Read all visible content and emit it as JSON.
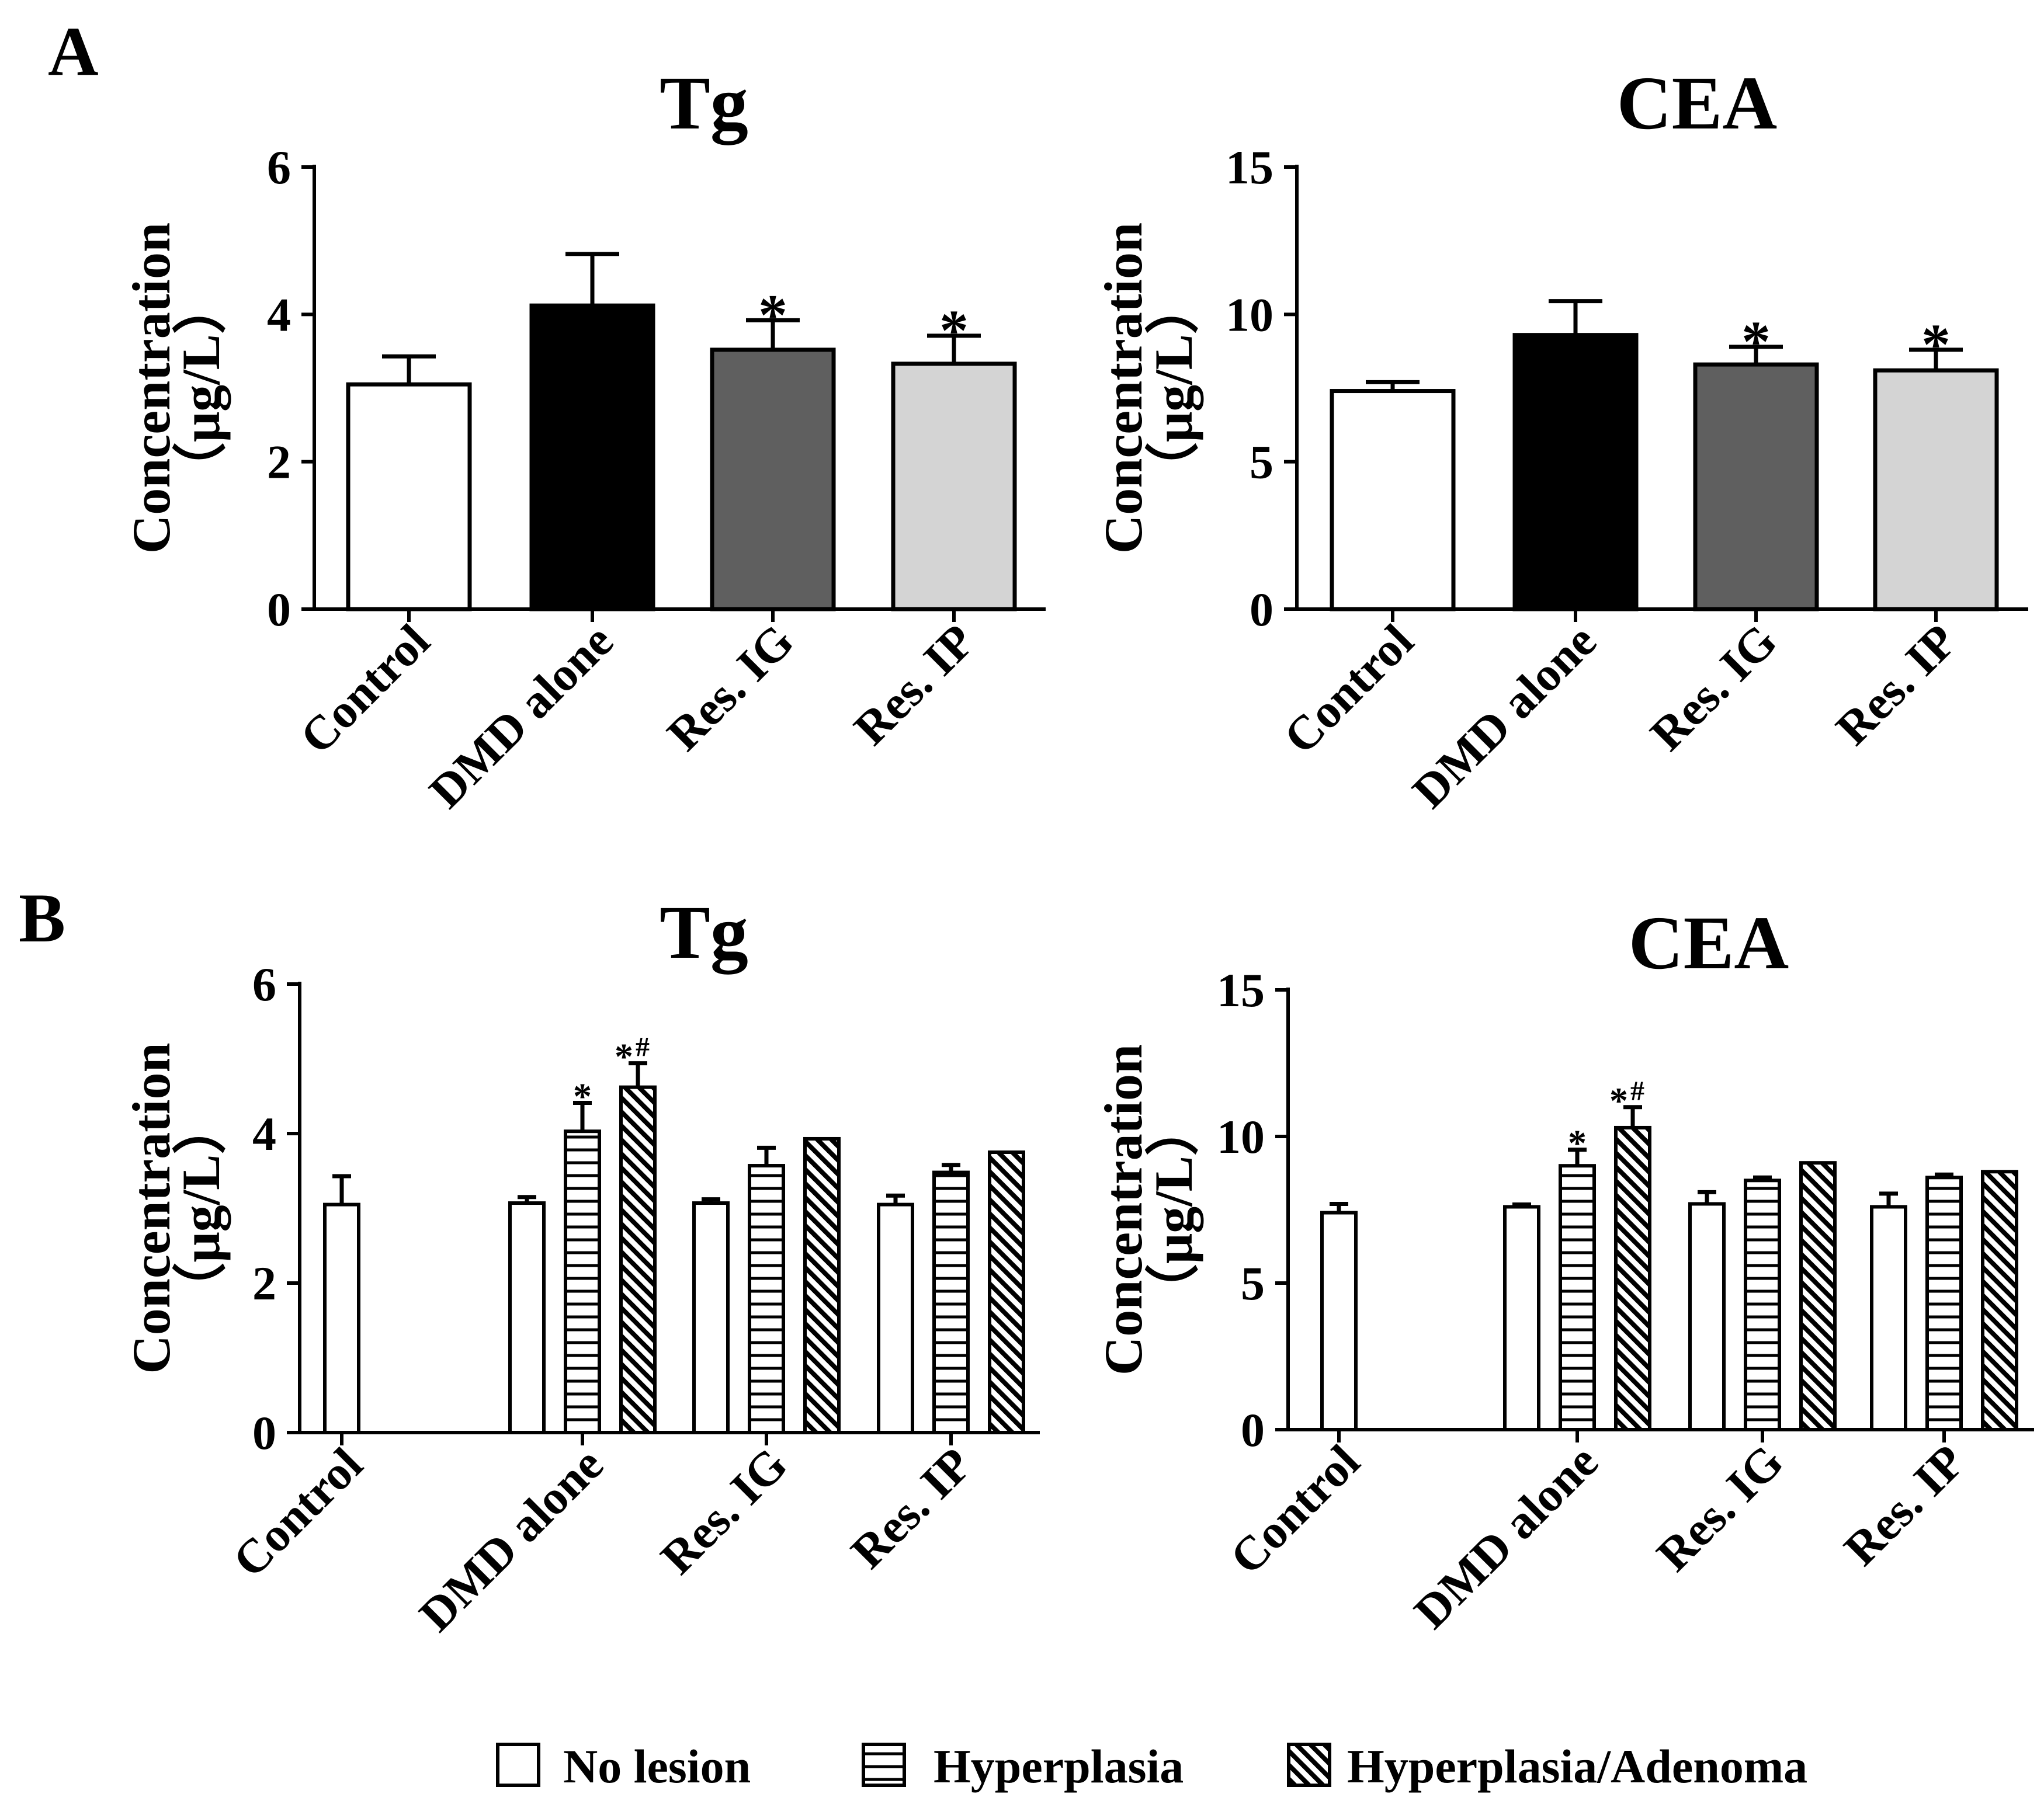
{
  "figure": {
    "panels": [
      {
        "label": "A",
        "position": "top"
      },
      {
        "label": "B",
        "position": "bottom"
      }
    ],
    "legend": {
      "placement": "bottom-center",
      "entries": [
        {
          "label": "No lesion",
          "pattern": "solid-white"
        },
        {
          "label": "Hyperplasia",
          "pattern": "horizontal-lines"
        },
        {
          "label": "Hyperplasia/Adenoma",
          "pattern": "diagonal-lines"
        }
      ]
    }
  },
  "chart_data": [
    {
      "id": "A-Tg",
      "panel": "A",
      "type": "bar",
      "title": "Tg",
      "ylabel_line1": "Concentration",
      "ylabel_line2": "（μg/L）",
      "ylim": [
        0,
        6
      ],
      "yticks": [
        "0",
        "2",
        "4",
        "6"
      ],
      "categories": [
        "Control",
        "DMD alone",
        "Res. IG",
        "Res. IP"
      ],
      "series": [
        {
          "name": "Concentration",
          "values": [
            3.05,
            4.12,
            3.52,
            3.33
          ],
          "errors": [
            0.38,
            0.7,
            0.4,
            0.38
          ],
          "colors": [
            "#ffffff",
            "#000000",
            "#5f5f5f",
            "#d4d4d4"
          ],
          "annotations": [
            "",
            "",
            "*",
            "*"
          ]
        }
      ]
    },
    {
      "id": "A-CEA",
      "panel": "A",
      "type": "bar",
      "title": "CEA",
      "ylabel_line1": "Concentration",
      "ylabel_line2": "（μg/L）",
      "ylim": [
        0,
        15
      ],
      "yticks": [
        "0",
        "5",
        "10",
        "15"
      ],
      "categories": [
        "Control",
        "DMD alone",
        "Res. IG",
        "Res. IP"
      ],
      "series": [
        {
          "name": "Concentration",
          "values": [
            7.4,
            9.3,
            8.3,
            8.1
          ],
          "errors": [
            0.3,
            1.15,
            0.6,
            0.7
          ],
          "colors": [
            "#ffffff",
            "#000000",
            "#5f5f5f",
            "#d4d4d4"
          ],
          "annotations": [
            "",
            "",
            "*",
            "*"
          ]
        }
      ]
    },
    {
      "id": "B-Tg",
      "panel": "B",
      "type": "bar",
      "title": "Tg",
      "ylabel_line1": "Concentration",
      "ylabel_line2": "（μg/L）",
      "ylim": [
        0,
        6
      ],
      "yticks": [
        "0",
        "2",
        "4",
        "6"
      ],
      "categories": [
        "Control",
        "DMD alone",
        "Res. IG",
        "Res. IP"
      ],
      "series": [
        {
          "name": "No lesion",
          "pattern": "solid-white",
          "values": [
            3.05,
            3.07,
            3.07,
            3.05
          ],
          "errors": [
            0.38,
            0.08,
            0.05,
            0.12
          ],
          "annotations": [
            "",
            "",
            "",
            ""
          ]
        },
        {
          "name": "Hyperplasia",
          "pattern": "horizontal-lines",
          "values": [
            null,
            4.03,
            3.57,
            3.48
          ],
          "errors": [
            null,
            0.38,
            0.24,
            0.1
          ],
          "annotations": [
            "",
            "*",
            "",
            ""
          ]
        },
        {
          "name": "Hyperplasia/Adenoma",
          "pattern": "diagonal-lines",
          "values": [
            null,
            4.62,
            3.93,
            3.75
          ],
          "errors": [
            null,
            0.32,
            0,
            0
          ],
          "annotations": [
            "",
            "*#",
            "",
            ""
          ]
        }
      ]
    },
    {
      "id": "B-CEA",
      "panel": "B",
      "type": "bar",
      "title": "CEA",
      "ylabel_line1": "Concentration",
      "ylabel_line2": "（μg/L）",
      "ylim": [
        0,
        15
      ],
      "yticks": [
        "0",
        "5",
        "10",
        "15"
      ],
      "categories": [
        "Control",
        "DMD alone",
        "Res. IG",
        "Res. IP"
      ],
      "series": [
        {
          "name": "No lesion",
          "pattern": "solid-white",
          "values": [
            7.4,
            7.6,
            7.7,
            7.6
          ],
          "errors": [
            0.3,
            0.08,
            0.4,
            0.45
          ],
          "annotations": [
            "",
            "",
            "",
            ""
          ]
        },
        {
          "name": "Hyperplasia",
          "pattern": "horizontal-lines",
          "values": [
            null,
            9.0,
            8.5,
            8.6
          ],
          "errors": [
            null,
            0.55,
            0.1,
            0.1
          ],
          "annotations": [
            "",
            "*",
            "",
            ""
          ]
        },
        {
          "name": "Hyperplasia/Adenoma",
          "pattern": "diagonal-lines",
          "values": [
            null,
            10.3,
            9.1,
            8.8
          ],
          "errors": [
            null,
            0.7,
            0,
            0
          ],
          "annotations": [
            "",
            "*#",
            "",
            ""
          ]
        }
      ]
    }
  ]
}
